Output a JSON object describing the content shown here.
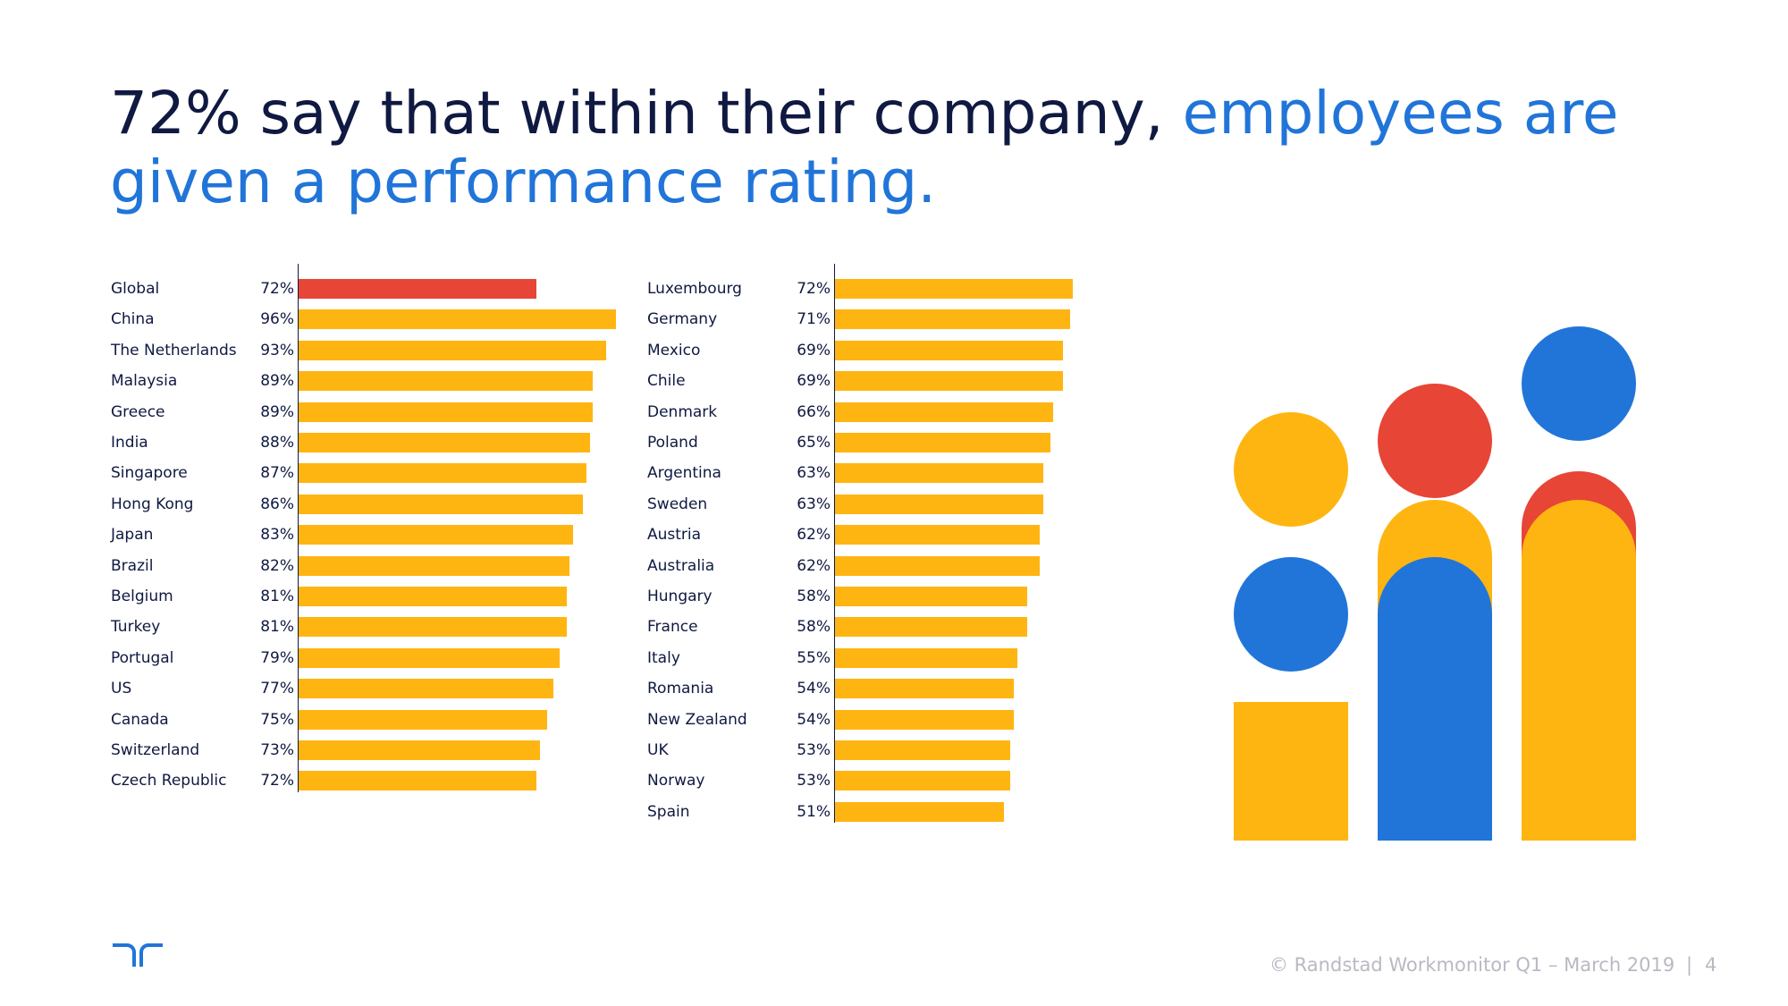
{
  "title": {
    "part1": "72% say that within their company, ",
    "part2": "employees are given a performance rating."
  },
  "colors": {
    "navy": "#0f1941",
    "blue": "#2175d9",
    "yellow": "#ffb511",
    "red": "#e74536",
    "footer_gray": "#b9b9c4"
  },
  "chart_data": [
    {
      "type": "bar",
      "orientation": "horizontal",
      "xlim": [
        0,
        100
      ],
      "highlight": "Global",
      "categories": [
        "Global",
        "China",
        "The Netherlands",
        "Malaysia",
        "Greece",
        "India",
        "Singapore",
        "Hong Kong",
        "Japan",
        "Brazil",
        "Belgium",
        "Turkey",
        "Portugal",
        "US",
        "Canada",
        "Switzerland",
        "Czech Republic"
      ],
      "values": [
        72,
        96,
        93,
        89,
        89,
        88,
        87,
        86,
        83,
        82,
        81,
        81,
        79,
        77,
        75,
        73,
        72
      ],
      "labels": [
        "72%",
        "96%",
        "93%",
        "89%",
        "89%",
        "88%",
        "87%",
        "86%",
        "83%",
        "82%",
        "81%",
        "81%",
        "79%",
        "77%",
        "75%",
        "73%",
        "72%"
      ]
    },
    {
      "type": "bar",
      "orientation": "horizontal",
      "xlim": [
        0,
        100
      ],
      "categories": [
        "Luxembourg",
        "Germany",
        "Mexico",
        "Chile",
        "Denmark",
        "Poland",
        "Argentina",
        "Sweden",
        "Austria",
        "Australia",
        "Hungary",
        "France",
        "Italy",
        "Romania",
        "New Zealand",
        "UK",
        "Norway",
        "Spain"
      ],
      "values": [
        72,
        71,
        69,
        69,
        66,
        65,
        63,
        63,
        62,
        62,
        58,
        58,
        55,
        54,
        54,
        53,
        53,
        51
      ],
      "labels": [
        "72%",
        "71%",
        "69%",
        "69%",
        "66%",
        "65%",
        "63%",
        "63%",
        "62%",
        "62%",
        "58%",
        "58%",
        "55%",
        "54%",
        "54%",
        "53%",
        "53%",
        "51%"
      ]
    }
  ],
  "illustration": {
    "icon": "people-figures-icon"
  },
  "logo": {
    "icon": "randstad-logo-icon"
  },
  "footer": {
    "copyright": "© Randstad Workmonitor Q1 – March 2019",
    "separator": "|",
    "page_number": "4"
  }
}
